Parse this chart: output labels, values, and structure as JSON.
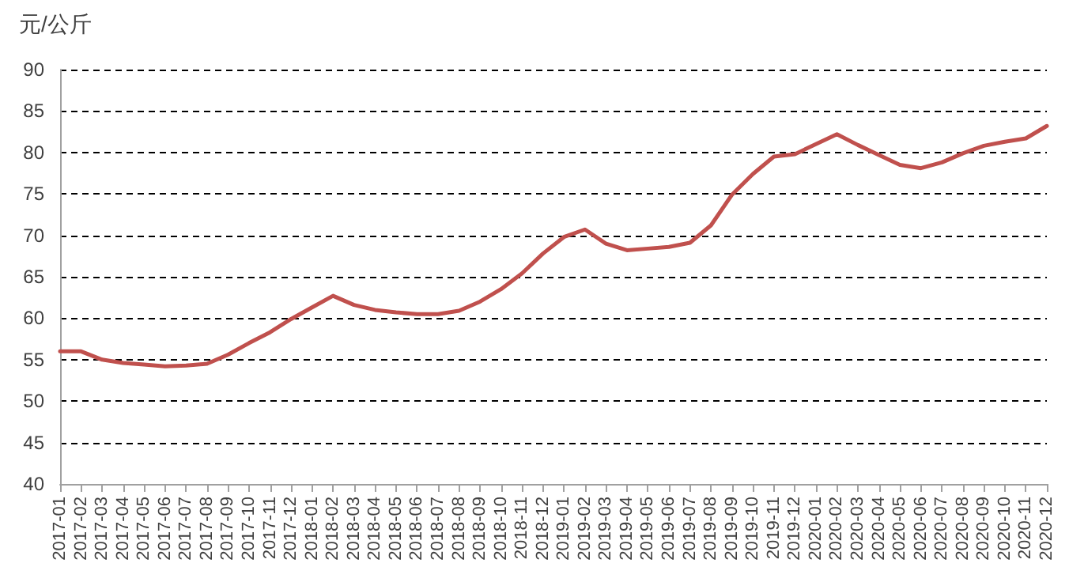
{
  "chart_data": {
    "type": "line",
    "ylabel": "元/公斤",
    "categories": [
      "2017-01",
      "2017-02",
      "2017-03",
      "2017-04",
      "2017-05",
      "2017-06",
      "2017-07",
      "2017-08",
      "2017-09",
      "2017-10",
      "2017-11",
      "2017-12",
      "2018-01",
      "2018-02",
      "2018-03",
      "2018-04",
      "2018-05",
      "2018-06",
      "2018-07",
      "2018-08",
      "2018-09",
      "2018-10",
      "2018-11",
      "2018-12",
      "2019-01",
      "2019-02",
      "2019-03",
      "2019-04",
      "2019-05",
      "2019-06",
      "2019-07",
      "2019-08",
      "2019-09",
      "2019-10",
      "2019-11",
      "2019-12",
      "2020-01",
      "2020-02",
      "2020-03",
      "2020-04",
      "2020-05",
      "2020-06",
      "2020-07",
      "2020-08",
      "2020-09",
      "2020-10",
      "2020-11",
      "2020-12"
    ],
    "series": [
      {
        "color": "#c0504d",
        "values": [
          56.0,
          56.0,
          55.0,
          54.6,
          54.4,
          54.2,
          54.3,
          54.5,
          55.6,
          57.0,
          58.3,
          59.9,
          61.3,
          62.7,
          61.6,
          61.0,
          60.7,
          60.5,
          60.5,
          60.9,
          62.0,
          63.5,
          65.4,
          67.8,
          69.8,
          70.7,
          69.0,
          68.2,
          68.4,
          68.6,
          69.1,
          71.2,
          74.9,
          77.4,
          79.5,
          79.8,
          81.0,
          82.2,
          80.9,
          79.7,
          78.5,
          78.1,
          78.8,
          79.9,
          80.8,
          81.3,
          81.7,
          83.2
        ]
      }
    ],
    "ylim": [
      40,
      90
    ],
    "yticks": [
      40,
      45,
      50,
      55,
      60,
      65,
      70,
      75,
      80,
      85,
      90
    ],
    "grid": "y",
    "marker": "none",
    "line_style": "solid"
  }
}
